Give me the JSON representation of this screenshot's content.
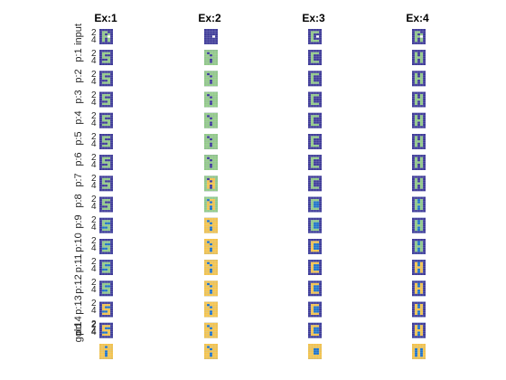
{
  "palette": {
    "0": "#ffffff",
    "1": "#3e3a98",
    "2": "#1e72c8",
    "3": "#90c987",
    "4": "#f3c24b"
  },
  "chart_data": {
    "type": "heatmap",
    "grid": true,
    "columns": [
      "Ex:1",
      "Ex:2",
      "Ex:3",
      "Ex:4"
    ],
    "rows": [
      "input",
      "p:1",
      "p:2",
      "p:3",
      "p:4",
      "p:5",
      "p:6",
      "p:7",
      "p:8",
      "p:9",
      "p:10",
      "p:11",
      "p:12",
      "p:13",
      "p:14",
      "gold"
    ],
    "y_ticks": [
      "2",
      "4"
    ],
    "x_ticks": [
      "2",
      "4"
    ],
    "patterns": {
      "S": [
        "11111",
        "12221",
        "12111",
        "12221",
        "11121",
        "12221",
        "11111"
      ],
      "A": [
        "11111",
        "11221",
        "12121",
        "12221",
        "12121",
        "12121",
        "11111"
      ],
      "C": [
        "11111",
        "12221",
        "12111",
        "12111",
        "12111",
        "12221",
        "11111"
      ],
      "H": [
        "11111",
        "12121",
        "12121",
        "12221",
        "12121",
        "12121",
        "11111"
      ],
      "R": [
        "11111",
        "12211",
        "12121",
        "12211",
        "12121",
        "12121",
        "11111"
      ],
      "T": [
        "11111",
        "12221",
        "11211",
        "11211",
        "11211",
        "11211",
        "11111"
      ],
      "M": [
        "11111",
        "12121",
        "12221",
        "12121",
        "12121",
        "12121",
        "11111"
      ]
    },
    "cells": [
      [
        {
          "p": "R",
          "f": "#3e3a98",
          "bg": "#3e3a98",
          "fg": "#90c987",
          "sp": 1
        },
        {
          "p": "A",
          "f": "#3e3a98",
          "bg": "#3e3a98",
          "fg": "#3e3a98",
          "sp": 1
        },
        {
          "p": "C",
          "f": "#3e3a98",
          "bg": "#3e3a98",
          "fg": "#90c987",
          "sp": 1
        },
        {
          "p": "R",
          "f": "#3e3a98",
          "bg": "#3e3a98",
          "fg": "#90c987",
          "sp": 1
        }
      ],
      [
        {
          "p": "S",
          "f": "#3e3a98",
          "bg": "#3e3a98",
          "fg": "#90c987"
        },
        {
          "p": "A",
          "f": "#90c987",
          "bg": "#3e3a98",
          "fg": "#90c987"
        },
        {
          "p": "C",
          "f": "#3e3a98",
          "bg": "#3e3a98",
          "fg": "#90c987"
        },
        {
          "p": "H",
          "f": "#3e3a98",
          "bg": "#3e3a98",
          "fg": "#90c987"
        }
      ],
      [
        {
          "p": "S",
          "f": "#3e3a98",
          "bg": "#3e3a98",
          "fg": "#90c987"
        },
        {
          "p": "A",
          "f": "#90c987",
          "bg": "#3e3a98",
          "fg": "#90c987"
        },
        {
          "p": "C",
          "f": "#3e3a98",
          "bg": "#3e3a98",
          "fg": "#90c987"
        },
        {
          "p": "H",
          "f": "#3e3a98",
          "bg": "#3e3a98",
          "fg": "#90c987"
        }
      ],
      [
        {
          "p": "S",
          "f": "#3e3a98",
          "bg": "#3e3a98",
          "fg": "#90c987"
        },
        {
          "p": "A",
          "f": "#90c987",
          "bg": "#3e3a98",
          "fg": "#90c987"
        },
        {
          "p": "C",
          "f": "#3e3a98",
          "bg": "#3e3a98",
          "fg": "#90c987"
        },
        {
          "p": "H",
          "f": "#3e3a98",
          "bg": "#3e3a98",
          "fg": "#90c987"
        }
      ],
      [
        {
          "p": "S",
          "f": "#3e3a98",
          "bg": "#3e3a98",
          "fg": "#90c987"
        },
        {
          "p": "A",
          "f": "#90c987",
          "bg": "#3e3a98",
          "fg": "#90c987"
        },
        {
          "p": "C",
          "f": "#3e3a98",
          "bg": "#3e3a98",
          "fg": "#90c987"
        },
        {
          "p": "H",
          "f": "#3e3a98",
          "bg": "#3e3a98",
          "fg": "#90c987"
        }
      ],
      [
        {
          "p": "S",
          "f": "#3e3a98",
          "bg": "#3e3a98",
          "fg": "#90c987"
        },
        {
          "p": "A",
          "f": "#90c987",
          "bg": "#3e3a98",
          "fg": "#90c987"
        },
        {
          "p": "C",
          "f": "#3e3a98",
          "bg": "#3e3a98",
          "fg": "#90c987"
        },
        {
          "p": "H",
          "f": "#3e3a98",
          "bg": "#3e3a98",
          "fg": "#90c987"
        }
      ],
      [
        {
          "p": "S",
          "f": "#3e3a98",
          "bg": "#3e3a98",
          "fg": "#90c987"
        },
        {
          "p": "A",
          "f": "#90c987",
          "bg": "#3e3a98",
          "fg": "#90c987"
        },
        {
          "p": "C",
          "f": "#3e3a98",
          "bg": "#3e3a98",
          "fg": "#90c987"
        },
        {
          "p": "H",
          "f": "#3e3a98",
          "bg": "#3e3a98",
          "fg": "#90c987"
        }
      ],
      [
        {
          "p": "S",
          "f": "#3e3a98",
          "bg": "#3e3a98",
          "fg": "#90c987"
        },
        {
          "p": "A",
          "f": "#90c987",
          "bg": "#3e3a98",
          "fg": "#f3c24b"
        },
        {
          "p": "C",
          "f": "#3e3a98",
          "bg": "#3e3a98",
          "fg": "#90c987"
        },
        {
          "p": "H",
          "f": "#3e3a98",
          "bg": "#3e3a98",
          "fg": "#90c987"
        }
      ],
      [
        {
          "p": "S",
          "f": "#3e3a98",
          "bg": "#3e3a98",
          "fg": "#90c987"
        },
        {
          "p": "A",
          "f": "#90c987",
          "bg": "#1e72c8",
          "fg": "#f3c24b"
        },
        {
          "p": "C",
          "f": "#3e3a98",
          "bg": "#1e72c8",
          "fg": "#90c987"
        },
        {
          "p": "H",
          "f": "#3e3a98",
          "bg": "#1e72c8",
          "fg": "#90c987"
        }
      ],
      [
        {
          "p": "S",
          "f": "#3e3a98",
          "bg": "#1e72c8",
          "fg": "#90c987"
        },
        {
          "p": "A",
          "f": "#f3c24b",
          "bg": "#1e72c8",
          "fg": "#f3c24b"
        },
        {
          "p": "C",
          "f": "#3e3a98",
          "bg": "#1e72c8",
          "fg": "#90c987"
        },
        {
          "p": "H",
          "f": "#3e3a98",
          "bg": "#1e72c8",
          "fg": "#90c987"
        }
      ],
      [
        {
          "p": "S",
          "f": "#3e3a98",
          "bg": "#1e72c8",
          "fg": "#90c987"
        },
        {
          "p": "A",
          "f": "#f3c24b",
          "bg": "#1e72c8",
          "fg": "#f3c24b"
        },
        {
          "p": "C",
          "f": "#3e3a98",
          "bg": "#1e72c8",
          "fg": "#f3c24b"
        },
        {
          "p": "H",
          "f": "#3e3a98",
          "bg": "#1e72c8",
          "fg": "#90c987"
        }
      ],
      [
        {
          "p": "S",
          "f": "#3e3a98",
          "bg": "#1e72c8",
          "fg": "#90c987"
        },
        {
          "p": "A",
          "f": "#f3c24b",
          "bg": "#1e72c8",
          "fg": "#f3c24b"
        },
        {
          "p": "C",
          "f": "#3e3a98",
          "bg": "#1e72c8",
          "fg": "#f3c24b"
        },
        {
          "p": "H",
          "f": "#3e3a98",
          "bg": "#1e72c8",
          "fg": "#f3c24b"
        }
      ],
      [
        {
          "p": "S",
          "f": "#3e3a98",
          "bg": "#1e72c8",
          "fg": "#90c987"
        },
        {
          "p": "A",
          "f": "#f3c24b",
          "bg": "#1e72c8",
          "fg": "#f3c24b"
        },
        {
          "p": "C",
          "f": "#3e3a98",
          "bg": "#1e72c8",
          "fg": "#f3c24b"
        },
        {
          "p": "H",
          "f": "#3e3a98",
          "bg": "#1e72c8",
          "fg": "#f3c24b"
        }
      ],
      [
        {
          "p": "S",
          "f": "#3e3a98",
          "bg": "#1e72c8",
          "fg": "#f3c24b"
        },
        {
          "p": "A",
          "f": "#f3c24b",
          "bg": "#1e72c8",
          "fg": "#f3c24b"
        },
        {
          "p": "C",
          "f": "#3e3a98",
          "bg": "#1e72c8",
          "fg": "#f3c24b"
        },
        {
          "p": "H",
          "f": "#3e3a98",
          "bg": "#1e72c8",
          "fg": "#f3c24b"
        }
      ],
      [
        {
          "p": "S",
          "f": "#3e3a98",
          "bg": "#1e72c8",
          "fg": "#f3c24b"
        },
        {
          "p": "A",
          "f": "#f3c24b",
          "bg": "#1e72c8",
          "fg": "#f3c24b"
        },
        {
          "p": "C",
          "f": "#3e3a98",
          "bg": "#1e72c8",
          "fg": "#f3c24b"
        },
        {
          "p": "H",
          "f": "#3e3a98",
          "bg": "#1e72c8",
          "fg": "#f3c24b"
        }
      ],
      [
        {
          "p": "M",
          "f": "#f3c24b",
          "bg": "#1e72c8",
          "fg": "#f3c24b"
        },
        {
          "p": "A",
          "f": "#f3c24b",
          "bg": "#1e72c8",
          "fg": "#f3c24b"
        },
        {
          "p": "C",
          "f": "#f3c24b",
          "bg": "#1e72c8",
          "fg": "#f3c24b"
        },
        {
          "p": "T",
          "f": "#f3c24b",
          "bg": "#1e72c8",
          "fg": "#f3c24b"
        }
      ]
    ]
  }
}
